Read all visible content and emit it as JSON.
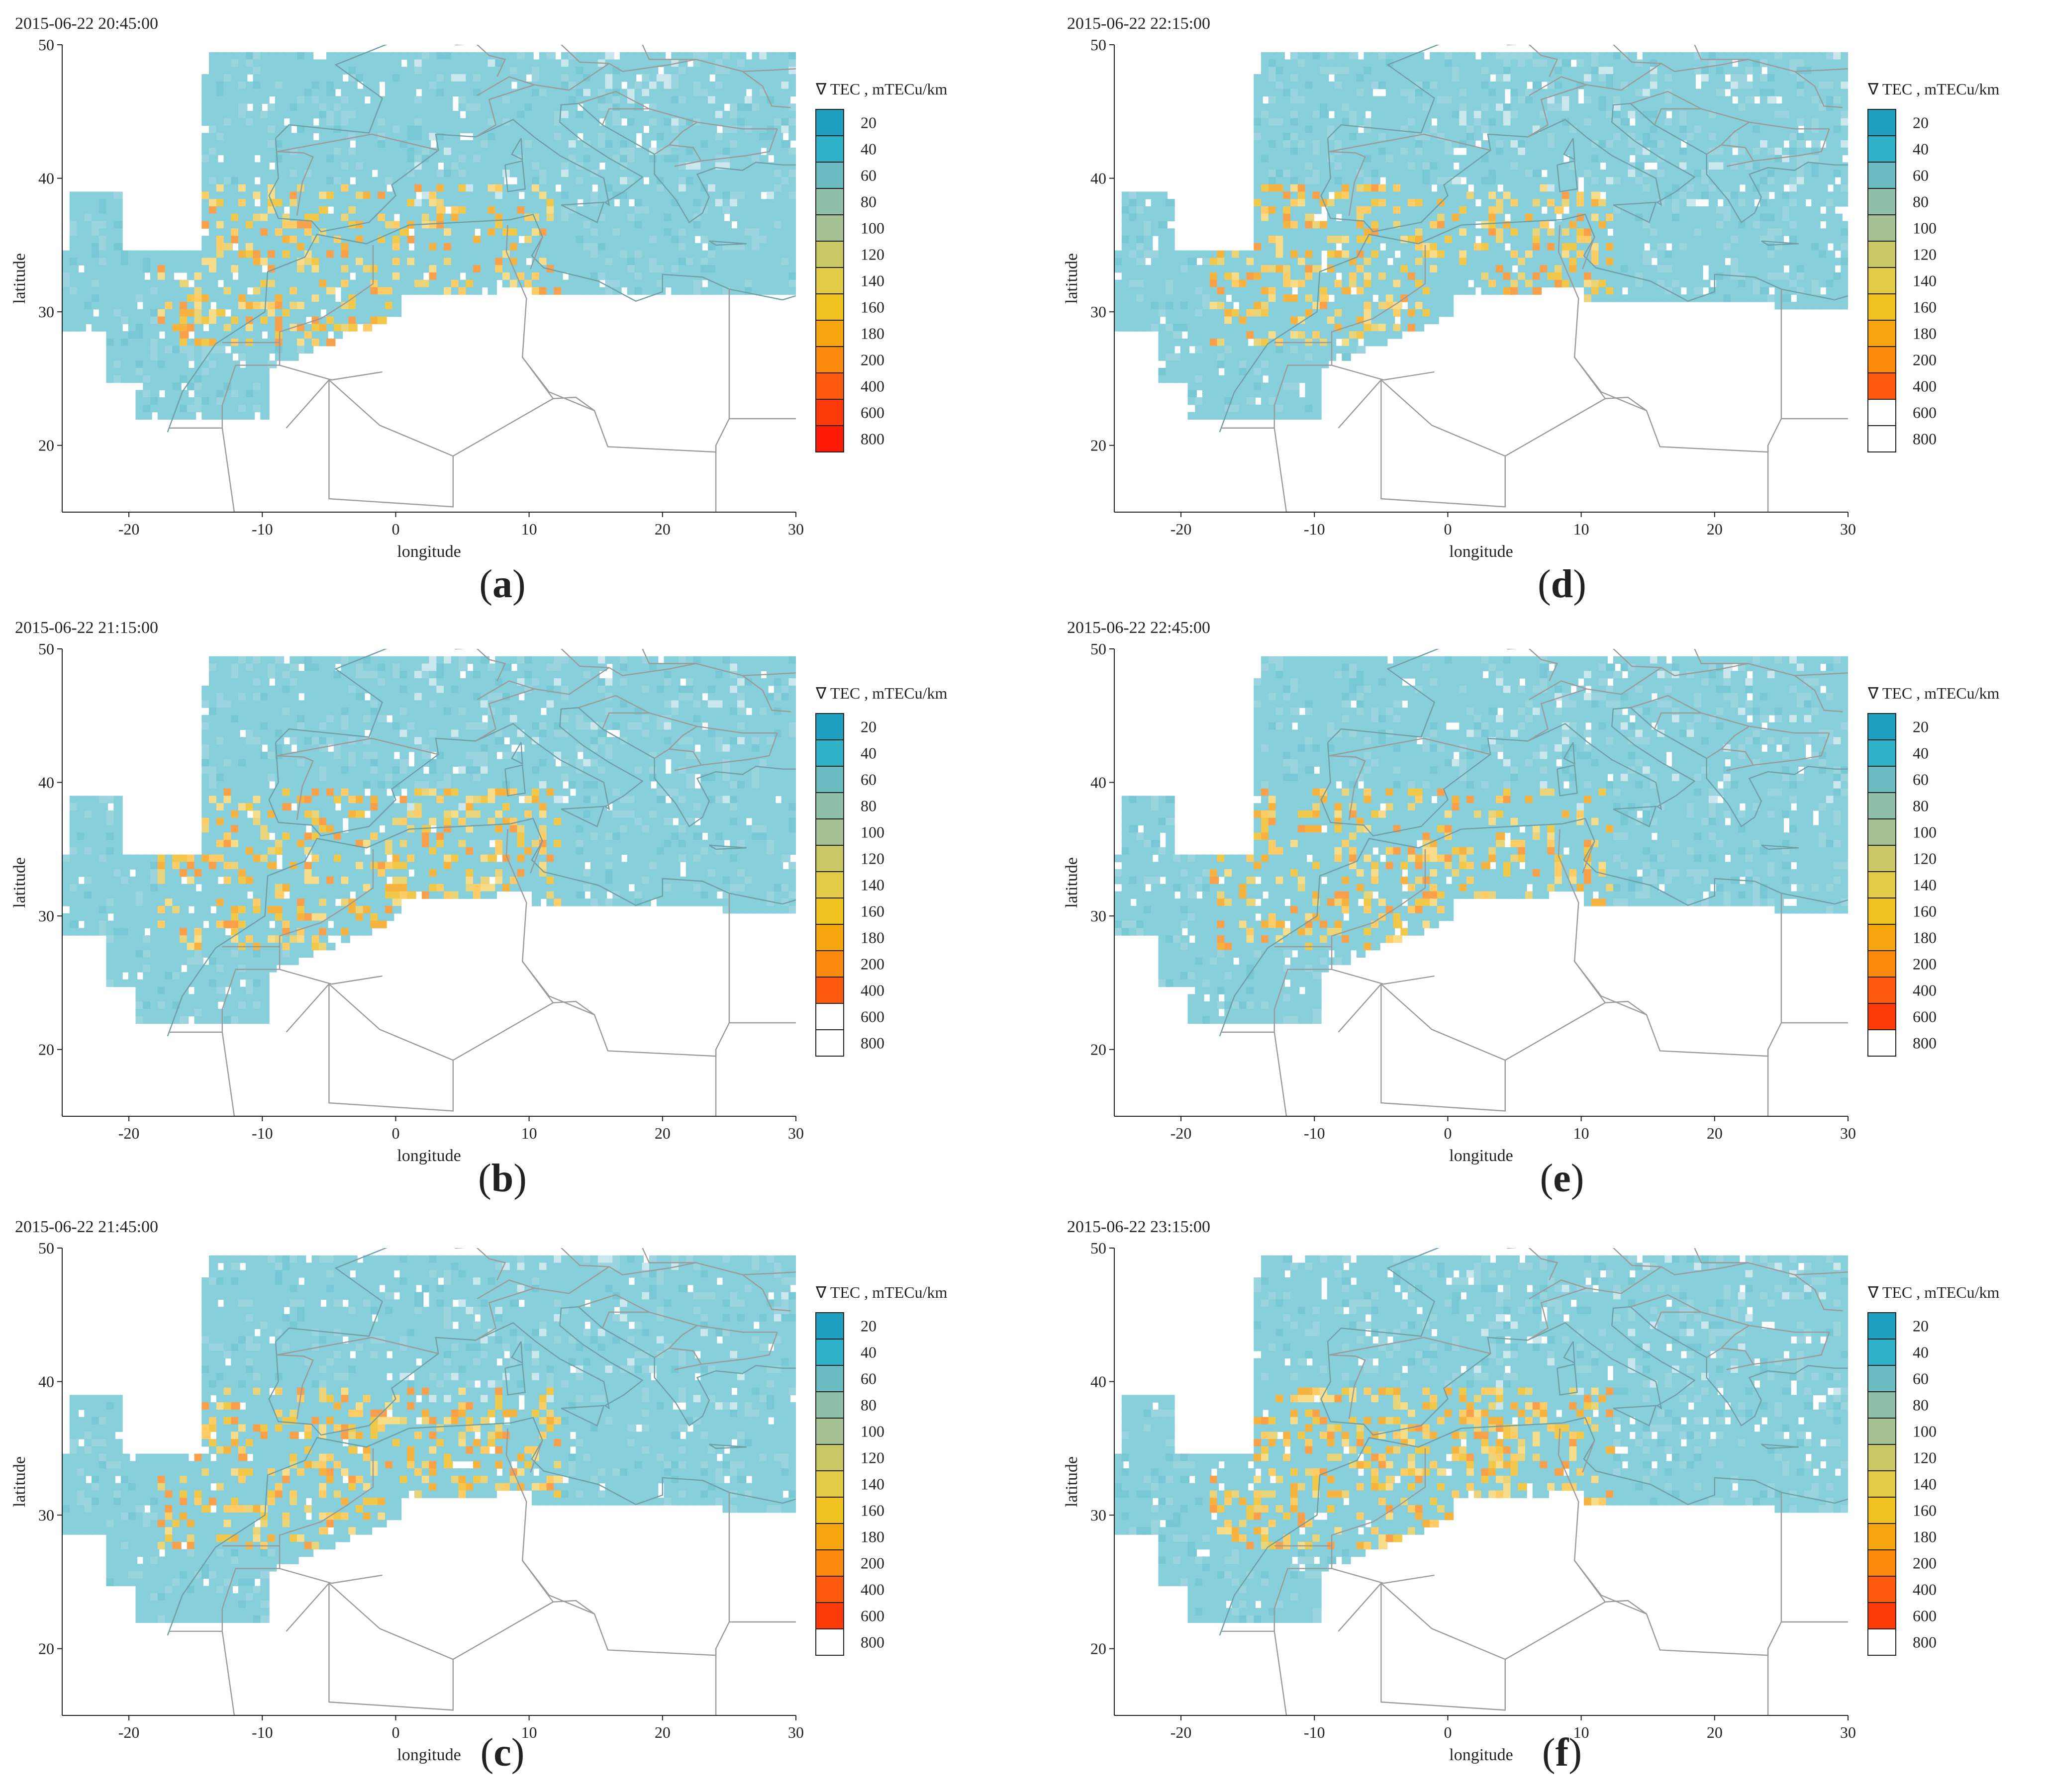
{
  "legend_title": "∇ TEC , mTECu/km",
  "axes": {
    "xlabel": "longitude",
    "ylabel": "latitude",
    "x_ticks": [
      "-20",
      "-10",
      "0",
      "10",
      "20",
      "30"
    ],
    "y_ticks": [
      "20",
      "30",
      "40",
      "50"
    ]
  },
  "colors": {
    "20": "#1f9fbf",
    "40": "#2fb1c7",
    "60": "#6bbcc1",
    "80": "#8fbfa9",
    "100": "#a6c294",
    "120": "#c9c763",
    "140": "#e2cc47",
    "160": "#efc21f",
    "180": "#f7a60f",
    "200": "#fb8a0c",
    "400": "#ff5a0d",
    "600": "#ff3a08",
    "800": "#ff1a05",
    "bg_cell": "#85cfdb",
    "border": "#9a9a9a",
    "coast": "#6f9fa6"
  },
  "panels": [
    {
      "id": "a",
      "letter": "a",
      "timestamp": "2015-06-22 20:45:00",
      "legend": [
        {
          "label": "20",
          "color": "#1f9fbf"
        },
        {
          "label": "40",
          "color": "#2fb1c7"
        },
        {
          "label": "60",
          "color": "#6bbcc1"
        },
        {
          "label": "80",
          "color": "#8fbfa9"
        },
        {
          "label": "100",
          "color": "#a6c294"
        },
        {
          "label": "120",
          "color": "#c9c763"
        },
        {
          "label": "140",
          "color": "#e2cc47"
        },
        {
          "label": "160",
          "color": "#efc21f"
        },
        {
          "label": "180",
          "color": "#f7a60f"
        },
        {
          "label": "200",
          "color": "#fb8a0c"
        },
        {
          "label": "400",
          "color": "#ff5a0d"
        },
        {
          "label": "600",
          "color": "#ff3a08"
        },
        {
          "label": "800",
          "color": "#ff1a05"
        }
      ]
    },
    {
      "id": "d",
      "letter": "d",
      "timestamp": "2015-06-22 22:15:00",
      "legend": [
        {
          "label": "20",
          "color": "#1f9fbf"
        },
        {
          "label": "40",
          "color": "#2fb1c7"
        },
        {
          "label": "60",
          "color": "#6bbcc1"
        },
        {
          "label": "80",
          "color": "#8fbfa9"
        },
        {
          "label": "100",
          "color": "#a6c294"
        },
        {
          "label": "120",
          "color": "#c9c763"
        },
        {
          "label": "140",
          "color": "#e2cc47"
        },
        {
          "label": "160",
          "color": "#efc21f"
        },
        {
          "label": "180",
          "color": "#f7a60f"
        },
        {
          "label": "200",
          "color": "#fb8a0c"
        },
        {
          "label": "400",
          "color": "#ff5a0d"
        },
        {
          "label": "600",
          "color": "#ffffff"
        },
        {
          "label": "800",
          "color": "#ffffff"
        }
      ]
    },
    {
      "id": "b",
      "letter": "b",
      "timestamp": "2015-06-22 21:15:00",
      "legend": [
        {
          "label": "20",
          "color": "#1f9fbf"
        },
        {
          "label": "40",
          "color": "#2fb1c7"
        },
        {
          "label": "60",
          "color": "#6bbcc1"
        },
        {
          "label": "80",
          "color": "#8fbfa9"
        },
        {
          "label": "100",
          "color": "#a6c294"
        },
        {
          "label": "120",
          "color": "#c9c763"
        },
        {
          "label": "140",
          "color": "#e2cc47"
        },
        {
          "label": "160",
          "color": "#efc21f"
        },
        {
          "label": "180",
          "color": "#f7a60f"
        },
        {
          "label": "200",
          "color": "#fb8a0c"
        },
        {
          "label": "400",
          "color": "#ff5a0d"
        },
        {
          "label": "600",
          "color": "#ffffff"
        },
        {
          "label": "800",
          "color": "#ffffff"
        }
      ]
    },
    {
      "id": "e",
      "letter": "e",
      "timestamp": "2015-06-22 22:45:00",
      "legend": [
        {
          "label": "20",
          "color": "#1f9fbf"
        },
        {
          "label": "40",
          "color": "#2fb1c7"
        },
        {
          "label": "60",
          "color": "#6bbcc1"
        },
        {
          "label": "80",
          "color": "#8fbfa9"
        },
        {
          "label": "100",
          "color": "#a6c294"
        },
        {
          "label": "120",
          "color": "#c9c763"
        },
        {
          "label": "140",
          "color": "#e2cc47"
        },
        {
          "label": "160",
          "color": "#efc21f"
        },
        {
          "label": "180",
          "color": "#f7a60f"
        },
        {
          "label": "200",
          "color": "#fb8a0c"
        },
        {
          "label": "400",
          "color": "#ff5a0d"
        },
        {
          "label": "600",
          "color": "#ff3a08"
        },
        {
          "label": "800",
          "color": "#ffffff"
        }
      ]
    },
    {
      "id": "c",
      "letter": "c",
      "timestamp": "2015-06-22 21:45:00",
      "legend": [
        {
          "label": "20",
          "color": "#1f9fbf"
        },
        {
          "label": "40",
          "color": "#2fb1c7"
        },
        {
          "label": "60",
          "color": "#6bbcc1"
        },
        {
          "label": "80",
          "color": "#8fbfa9"
        },
        {
          "label": "100",
          "color": "#a6c294"
        },
        {
          "label": "120",
          "color": "#c9c763"
        },
        {
          "label": "140",
          "color": "#e2cc47"
        },
        {
          "label": "160",
          "color": "#efc21f"
        },
        {
          "label": "180",
          "color": "#f7a60f"
        },
        {
          "label": "200",
          "color": "#fb8a0c"
        },
        {
          "label": "400",
          "color": "#ff5a0d"
        },
        {
          "label": "600",
          "color": "#ff3a08"
        },
        {
          "label": "800",
          "color": "#ffffff"
        }
      ]
    },
    {
      "id": "f",
      "letter": "f",
      "timestamp": "2015-06-22 23:15:00",
      "legend": [
        {
          "label": "20",
          "color": "#1f9fbf"
        },
        {
          "label": "40",
          "color": "#2fb1c7"
        },
        {
          "label": "60",
          "color": "#6bbcc1"
        },
        {
          "label": "80",
          "color": "#8fbfa9"
        },
        {
          "label": "100",
          "color": "#a6c294"
        },
        {
          "label": "120",
          "color": "#c9c763"
        },
        {
          "label": "140",
          "color": "#e2cc47"
        },
        {
          "label": "160",
          "color": "#efc21f"
        },
        {
          "label": "180",
          "color": "#f7a60f"
        },
        {
          "label": "200",
          "color": "#fb8a0c"
        },
        {
          "label": "400",
          "color": "#ff5a0d"
        },
        {
          "label": "600",
          "color": "#ff3a08"
        },
        {
          "label": "800",
          "color": "#ffffff"
        }
      ]
    }
  ]
}
